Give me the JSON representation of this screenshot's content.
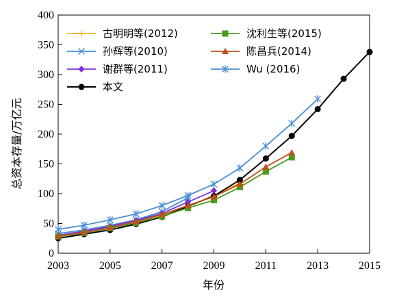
{
  "chart_data": {
    "type": "line",
    "xlabel": "年份",
    "ylabel": "总资本存量/万亿元",
    "xlim": [
      2003,
      2015
    ],
    "ylim": [
      0,
      400
    ],
    "xticks": [
      2003,
      2005,
      2007,
      2009,
      2011,
      2013,
      2015
    ],
    "yticks": [
      0,
      50,
      100,
      150,
      200,
      250,
      300,
      350,
      400
    ],
    "grid": false,
    "legend_position": "top-left",
    "series": [
      {
        "name": "古明明等(2012)",
        "color": "#f5b21b",
        "marker": "plus",
        "x": [
          2003,
          2004,
          2005,
          2006,
          2007,
          2008,
          2009,
          2010
        ],
        "y": [
          30,
          36,
          43,
          52,
          64,
          79,
          96,
          118
        ]
      },
      {
        "name": "孙辉等(2010)",
        "color": "#4a8fd6",
        "marker": "x",
        "x": [
          2003,
          2004,
          2005,
          2006,
          2007,
          2008
        ],
        "y": [
          33,
          39,
          47,
          56,
          70,
          93
        ]
      },
      {
        "name": "谢群等(2011)",
        "color": "#7b2fe0",
        "marker": "diamond",
        "x": [
          2003,
          2004,
          2005,
          2006,
          2007,
          2008,
          2009
        ],
        "y": [
          30,
          37,
          45,
          55,
          67,
          86,
          105
        ]
      },
      {
        "name": "本文",
        "color": "#000000",
        "marker": "circle",
        "x": [
          2003,
          2004,
          2005,
          2006,
          2007,
          2008,
          2009,
          2010,
          2011,
          2012,
          2013,
          2014,
          2015
        ],
        "y": [
          25,
          32,
          39,
          49,
          61,
          79,
          96,
          123,
          159,
          197,
          242,
          293,
          338
        ]
      },
      {
        "name": "沈利生等(2015)",
        "color": "#4a9a1b",
        "marker": "square",
        "x": [
          2003,
          2004,
          2005,
          2006,
          2007,
          2008,
          2009,
          2010,
          2011,
          2012
        ],
        "y": [
          28,
          34,
          42,
          51,
          62,
          76,
          89,
          111,
          137,
          161
        ]
      },
      {
        "name": "陈昌兵(2014)",
        "color": "#c0501c",
        "marker": "triangle",
        "x": [
          2003,
          2004,
          2005,
          2006,
          2007,
          2008,
          2009,
          2010,
          2011,
          2012
        ],
        "y": [
          29,
          35,
          43,
          53,
          65,
          80,
          95,
          116,
          145,
          169
        ]
      },
      {
        "name": "Wu (2016)",
        "color": "#4a8fd6",
        "marker": "asterisk",
        "x": [
          2003,
          2004,
          2005,
          2006,
          2007,
          2008,
          2009,
          2010,
          2011,
          2012,
          2013
        ],
        "y": [
          40,
          47,
          56,
          66,
          80,
          97,
          116,
          143,
          180,
          218,
          259
        ]
      }
    ],
    "legend_columns": [
      [
        "古明明等(2012)",
        "孙辉等(2010)",
        "谢群等(2011)",
        "本文"
      ],
      [
        "沈利生等(2015)",
        "陈昌兵(2014)",
        "Wu (2016)"
      ]
    ]
  }
}
